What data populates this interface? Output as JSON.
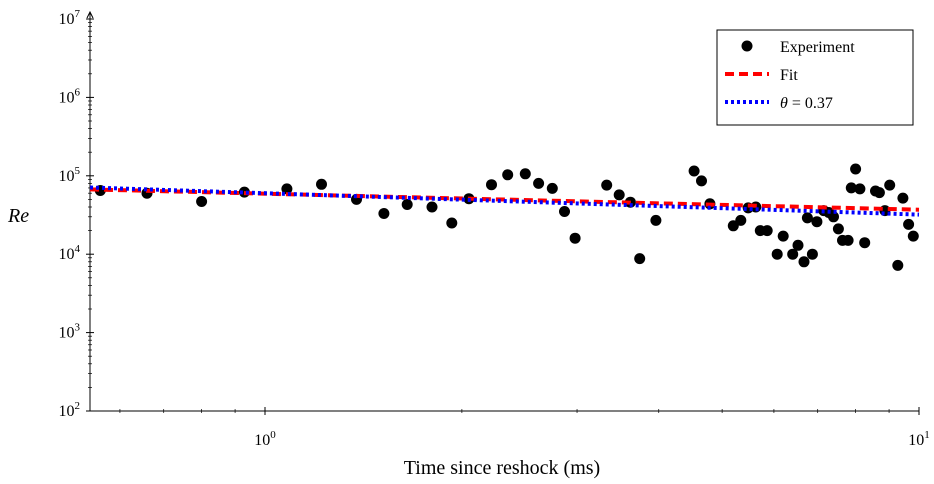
{
  "chart_data": {
    "type": "scatter",
    "title": "",
    "xlabel": "Time since reshock (ms)",
    "ylabel": "Re",
    "xscale": "log",
    "yscale": "log",
    "xlim": [
      0.54,
      10
    ],
    "ylim": [
      100,
      10000000
    ],
    "grid": false,
    "legend_position": "top-right",
    "x_ticks": [
      {
        "value": 1,
        "base": "10",
        "exp": "0"
      },
      {
        "value": 10,
        "base": "10",
        "exp": "1"
      }
    ],
    "y_ticks": [
      {
        "value": 100,
        "base": "10",
        "exp": "2"
      },
      {
        "value": 1000,
        "base": "10",
        "exp": "3"
      },
      {
        "value": 10000,
        "base": "10",
        "exp": "4"
      },
      {
        "value": 100000,
        "base": "10",
        "exp": "5"
      },
      {
        "value": 1000000,
        "base": "10",
        "exp": "6"
      },
      {
        "value": 10000000,
        "base": "10",
        "exp": "7"
      }
    ],
    "series": [
      {
        "name": "Experiment",
        "kind": "scatter",
        "color": "#000000",
        "points": [
          [
            0.56,
            65000
          ],
          [
            0.66,
            60000
          ],
          [
            0.8,
            47000
          ],
          [
            0.93,
            62000
          ],
          [
            1.08,
            68000
          ],
          [
            1.22,
            78000
          ],
          [
            1.38,
            50000
          ],
          [
            1.52,
            33000
          ],
          [
            1.65,
            43000
          ],
          [
            1.8,
            40000
          ],
          [
            1.93,
            25000
          ],
          [
            2.05,
            51000
          ],
          [
            2.22,
            77000
          ],
          [
            2.35,
            103000
          ],
          [
            2.5,
            106000
          ],
          [
            2.62,
            80000
          ],
          [
            2.75,
            69000
          ],
          [
            2.87,
            35000
          ],
          [
            2.98,
            16000
          ],
          [
            3.33,
            76000
          ],
          [
            3.48,
            57000
          ],
          [
            3.62,
            46000
          ],
          [
            3.74,
            8800
          ],
          [
            3.96,
            27000
          ],
          [
            4.53,
            115000
          ],
          [
            4.65,
            86000
          ],
          [
            4.79,
            44000
          ],
          [
            5.2,
            23000
          ],
          [
            5.34,
            27000
          ],
          [
            5.48,
            39000
          ],
          [
            5.63,
            40000
          ],
          [
            5.72,
            20000
          ],
          [
            5.86,
            20000
          ],
          [
            6.07,
            10000
          ],
          [
            6.2,
            17000
          ],
          [
            6.41,
            10000
          ],
          [
            6.53,
            13000
          ],
          [
            6.67,
            8000
          ],
          [
            6.75,
            29000
          ],
          [
            6.87,
            10000
          ],
          [
            6.98,
            26000
          ],
          [
            7.15,
            36000
          ],
          [
            7.28,
            34000
          ],
          [
            7.4,
            30000
          ],
          [
            7.53,
            21000
          ],
          [
            7.64,
            15000
          ],
          [
            7.79,
            15000
          ],
          [
            7.88,
            70000
          ],
          [
            8.0,
            122000
          ],
          [
            8.12,
            68000
          ],
          [
            8.26,
            14000
          ],
          [
            8.58,
            64000
          ],
          [
            8.7,
            61000
          ],
          [
            8.87,
            36000
          ],
          [
            9.02,
            76000
          ],
          [
            9.28,
            7200
          ],
          [
            9.45,
            52000
          ],
          [
            9.64,
            24000
          ],
          [
            9.8,
            17000
          ]
        ]
      },
      {
        "name": "Fit",
        "kind": "line",
        "style": "dashed",
        "color": "#ff0000",
        "points": [
          [
            0.54,
            67000
          ],
          [
            10,
            37000
          ]
        ]
      },
      {
        "name": "θ = 0.37",
        "kind": "line",
        "style": "dotted",
        "color": "#0000ff",
        "points": [
          [
            0.54,
            71000
          ],
          [
            10,
            32000
          ]
        ]
      }
    ]
  },
  "legend": {
    "experiment_label": "Experiment",
    "fit_label": "Fit",
    "theta_symbol": "θ",
    "theta_value": " = 0.37"
  }
}
